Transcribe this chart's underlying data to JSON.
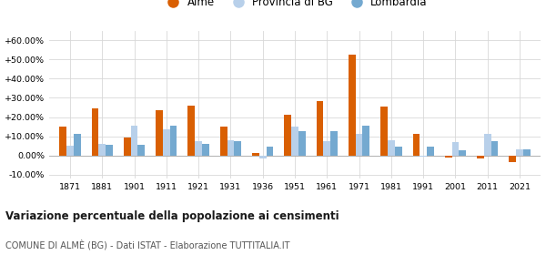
{
  "years": [
    1871,
    1881,
    1901,
    1911,
    1921,
    1931,
    1936,
    1951,
    1961,
    1971,
    1981,
    1991,
    2001,
    2011,
    2021
  ],
  "alme": [
    15.0,
    24.5,
    9.5,
    23.5,
    26.0,
    15.0,
    1.5,
    21.0,
    28.5,
    52.5,
    25.5,
    11.0,
    -1.0,
    -1.5,
    -3.5
  ],
  "provincia_bg": [
    5.0,
    6.0,
    15.5,
    13.5,
    7.5,
    8.0,
    -1.5,
    15.0,
    7.5,
    11.0,
    8.0,
    -0.5,
    7.0,
    11.0,
    3.0
  ],
  "lombardia": [
    11.0,
    5.5,
    5.5,
    15.5,
    6.0,
    7.5,
    4.5,
    12.5,
    12.5,
    15.5,
    4.5,
    4.5,
    2.5,
    7.5,
    3.0
  ],
  "alme_color": "#d95f02",
  "provincia_color": "#b8d0ea",
  "lombardia_color": "#74a9d0",
  "ylim": [
    -12,
    65
  ],
  "yticks": [
    -10,
    0,
    10,
    20,
    30,
    40,
    50,
    60
  ],
  "ytick_labels": [
    "-10.00%",
    "0.00%",
    "+10.00%",
    "+20.00%",
    "+30.00%",
    "+40.00%",
    "+50.00%",
    "+60.00%"
  ],
  "title": "Variazione percentuale della popolazione ai censimenti",
  "subtitle": "COMUNE DI ALMÈ (BG) - Dati ISTAT - Elaborazione TUTTITALIA.IT",
  "legend_labels": [
    "Almè",
    "Provincia di BG",
    "Lombardia"
  ],
  "bar_width": 0.22,
  "background_color": "#ffffff",
  "grid_color": "#d8d8d8"
}
